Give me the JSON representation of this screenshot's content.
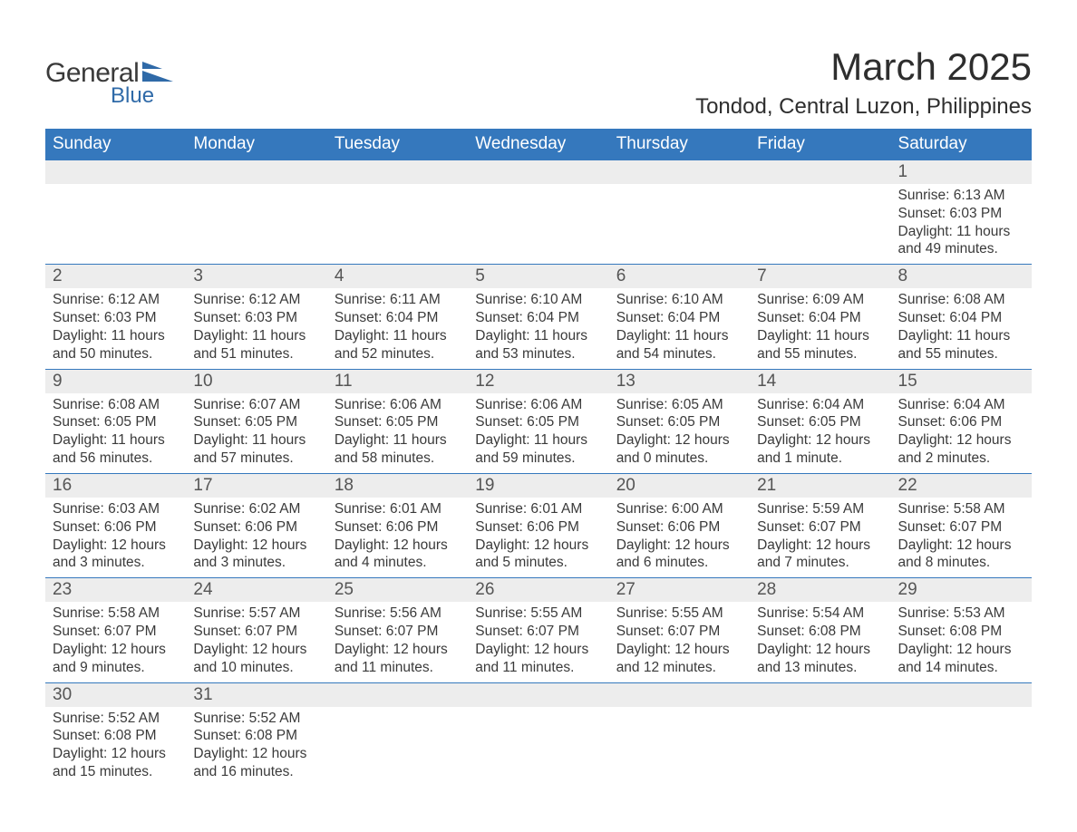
{
  "logo": {
    "general": "General",
    "blue": "Blue",
    "shape_color": "#2f6aa8"
  },
  "title": "March 2025",
  "location": "Tondod, Central Luzon, Philippines",
  "day_headers": [
    "Sunday",
    "Monday",
    "Tuesday",
    "Wednesday",
    "Thursday",
    "Friday",
    "Saturday"
  ],
  "colors": {
    "header_bg": "#3578bd",
    "header_text": "#ffffff",
    "daynum_bg": "#ededed",
    "row_border": "#3578bd",
    "body_text": "#3a3a3a",
    "title_text": "#2e2e2e"
  },
  "fonts": {
    "title_size_pt": 32,
    "location_size_pt": 18,
    "header_size_pt": 14,
    "body_size_pt": 11.5
  },
  "weeks": [
    [
      null,
      null,
      null,
      null,
      null,
      null,
      {
        "n": "1",
        "sr": "Sunrise: 6:13 AM",
        "ss": "Sunset: 6:03 PM",
        "d1": "Daylight: 11 hours",
        "d2": "and 49 minutes."
      }
    ],
    [
      {
        "n": "2",
        "sr": "Sunrise: 6:12 AM",
        "ss": "Sunset: 6:03 PM",
        "d1": "Daylight: 11 hours",
        "d2": "and 50 minutes."
      },
      {
        "n": "3",
        "sr": "Sunrise: 6:12 AM",
        "ss": "Sunset: 6:03 PM",
        "d1": "Daylight: 11 hours",
        "d2": "and 51 minutes."
      },
      {
        "n": "4",
        "sr": "Sunrise: 6:11 AM",
        "ss": "Sunset: 6:04 PM",
        "d1": "Daylight: 11 hours",
        "d2": "and 52 minutes."
      },
      {
        "n": "5",
        "sr": "Sunrise: 6:10 AM",
        "ss": "Sunset: 6:04 PM",
        "d1": "Daylight: 11 hours",
        "d2": "and 53 minutes."
      },
      {
        "n": "6",
        "sr": "Sunrise: 6:10 AM",
        "ss": "Sunset: 6:04 PM",
        "d1": "Daylight: 11 hours",
        "d2": "and 54 minutes."
      },
      {
        "n": "7",
        "sr": "Sunrise: 6:09 AM",
        "ss": "Sunset: 6:04 PM",
        "d1": "Daylight: 11 hours",
        "d2": "and 55 minutes."
      },
      {
        "n": "8",
        "sr": "Sunrise: 6:08 AM",
        "ss": "Sunset: 6:04 PM",
        "d1": "Daylight: 11 hours",
        "d2": "and 55 minutes."
      }
    ],
    [
      {
        "n": "9",
        "sr": "Sunrise: 6:08 AM",
        "ss": "Sunset: 6:05 PM",
        "d1": "Daylight: 11 hours",
        "d2": "and 56 minutes."
      },
      {
        "n": "10",
        "sr": "Sunrise: 6:07 AM",
        "ss": "Sunset: 6:05 PM",
        "d1": "Daylight: 11 hours",
        "d2": "and 57 minutes."
      },
      {
        "n": "11",
        "sr": "Sunrise: 6:06 AM",
        "ss": "Sunset: 6:05 PM",
        "d1": "Daylight: 11 hours",
        "d2": "and 58 minutes."
      },
      {
        "n": "12",
        "sr": "Sunrise: 6:06 AM",
        "ss": "Sunset: 6:05 PM",
        "d1": "Daylight: 11 hours",
        "d2": "and 59 minutes."
      },
      {
        "n": "13",
        "sr": "Sunrise: 6:05 AM",
        "ss": "Sunset: 6:05 PM",
        "d1": "Daylight: 12 hours",
        "d2": "and 0 minutes."
      },
      {
        "n": "14",
        "sr": "Sunrise: 6:04 AM",
        "ss": "Sunset: 6:05 PM",
        "d1": "Daylight: 12 hours",
        "d2": "and 1 minute."
      },
      {
        "n": "15",
        "sr": "Sunrise: 6:04 AM",
        "ss": "Sunset: 6:06 PM",
        "d1": "Daylight: 12 hours",
        "d2": "and 2 minutes."
      }
    ],
    [
      {
        "n": "16",
        "sr": "Sunrise: 6:03 AM",
        "ss": "Sunset: 6:06 PM",
        "d1": "Daylight: 12 hours",
        "d2": "and 3 minutes."
      },
      {
        "n": "17",
        "sr": "Sunrise: 6:02 AM",
        "ss": "Sunset: 6:06 PM",
        "d1": "Daylight: 12 hours",
        "d2": "and 3 minutes."
      },
      {
        "n": "18",
        "sr": "Sunrise: 6:01 AM",
        "ss": "Sunset: 6:06 PM",
        "d1": "Daylight: 12 hours",
        "d2": "and 4 minutes."
      },
      {
        "n": "19",
        "sr": "Sunrise: 6:01 AM",
        "ss": "Sunset: 6:06 PM",
        "d1": "Daylight: 12 hours",
        "d2": "and 5 minutes."
      },
      {
        "n": "20",
        "sr": "Sunrise: 6:00 AM",
        "ss": "Sunset: 6:06 PM",
        "d1": "Daylight: 12 hours",
        "d2": "and 6 minutes."
      },
      {
        "n": "21",
        "sr": "Sunrise: 5:59 AM",
        "ss": "Sunset: 6:07 PM",
        "d1": "Daylight: 12 hours",
        "d2": "and 7 minutes."
      },
      {
        "n": "22",
        "sr": "Sunrise: 5:58 AM",
        "ss": "Sunset: 6:07 PM",
        "d1": "Daylight: 12 hours",
        "d2": "and 8 minutes."
      }
    ],
    [
      {
        "n": "23",
        "sr": "Sunrise: 5:58 AM",
        "ss": "Sunset: 6:07 PM",
        "d1": "Daylight: 12 hours",
        "d2": "and 9 minutes."
      },
      {
        "n": "24",
        "sr": "Sunrise: 5:57 AM",
        "ss": "Sunset: 6:07 PM",
        "d1": "Daylight: 12 hours",
        "d2": "and 10 minutes."
      },
      {
        "n": "25",
        "sr": "Sunrise: 5:56 AM",
        "ss": "Sunset: 6:07 PM",
        "d1": "Daylight: 12 hours",
        "d2": "and 11 minutes."
      },
      {
        "n": "26",
        "sr": "Sunrise: 5:55 AM",
        "ss": "Sunset: 6:07 PM",
        "d1": "Daylight: 12 hours",
        "d2": "and 11 minutes."
      },
      {
        "n": "27",
        "sr": "Sunrise: 5:55 AM",
        "ss": "Sunset: 6:07 PM",
        "d1": "Daylight: 12 hours",
        "d2": "and 12 minutes."
      },
      {
        "n": "28",
        "sr": "Sunrise: 5:54 AM",
        "ss": "Sunset: 6:08 PM",
        "d1": "Daylight: 12 hours",
        "d2": "and 13 minutes."
      },
      {
        "n": "29",
        "sr": "Sunrise: 5:53 AM",
        "ss": "Sunset: 6:08 PM",
        "d1": "Daylight: 12 hours",
        "d2": "and 14 minutes."
      }
    ],
    [
      {
        "n": "30",
        "sr": "Sunrise: 5:52 AM",
        "ss": "Sunset: 6:08 PM",
        "d1": "Daylight: 12 hours",
        "d2": "and 15 minutes."
      },
      {
        "n": "31",
        "sr": "Sunrise: 5:52 AM",
        "ss": "Sunset: 6:08 PM",
        "d1": "Daylight: 12 hours",
        "d2": "and 16 minutes."
      },
      null,
      null,
      null,
      null,
      null
    ]
  ]
}
